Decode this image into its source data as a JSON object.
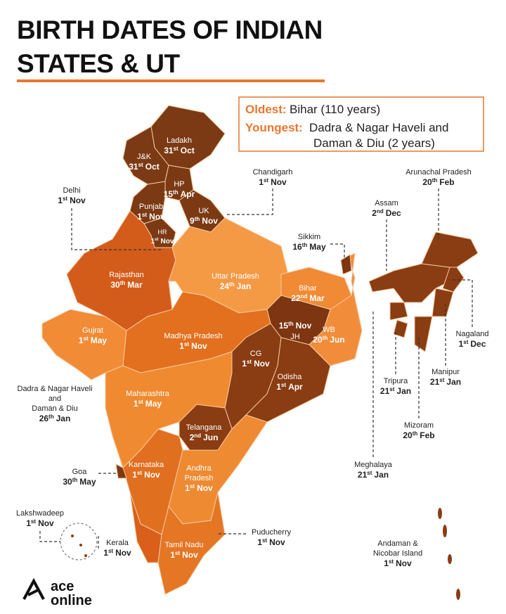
{
  "header": {
    "title_lines": [
      "BIRTH DATES OF INDIAN",
      "STATES & UT"
    ]
  },
  "highlight_box": {
    "oldest_key": "Oldest:",
    "oldest_value": "Bihar (110 years)",
    "youngest_key": "Youngest:",
    "youngest_lines": [
      "Dadra & Nagar Haveli and",
      "Daman & Diu (2 years)"
    ]
  },
  "labels": [
    {
      "name": [
        "Ladakh"
      ],
      "day": "31",
      "suffix": "st",
      "month": "Oct"
    },
    {
      "name": [
        "J&K"
      ],
      "day": "31",
      "suffix": "st",
      "month": "Oct"
    },
    {
      "name": [
        "HP"
      ],
      "day": "15",
      "suffix": "th",
      "month": "Apr"
    },
    {
      "name": [
        "Punjab"
      ],
      "day": "1",
      "suffix": "st",
      "month": "Nov"
    },
    {
      "name": [
        "UK"
      ],
      "day": "9",
      "suffix": "th",
      "month": "Nov"
    },
    {
      "name": [
        "HR"
      ],
      "day": "1",
      "suffix": "st",
      "month": "Nov"
    },
    {
      "name": [
        "Chandigarh"
      ],
      "day": "1",
      "suffix": "st",
      "month": "Nov"
    },
    {
      "name": [
        "Delhi"
      ],
      "day": "1",
      "suffix": "st",
      "month": "Nov"
    },
    {
      "name": [
        "Rajasthan"
      ],
      "day": "30",
      "suffix": "th",
      "month": "Mar"
    },
    {
      "name": [
        "Uttar Pradesh"
      ],
      "day": "24",
      "suffix": "th",
      "month": "Jan"
    },
    {
      "name": [
        "Bihar"
      ],
      "day": "22",
      "suffix": "nd",
      "month": "Mar"
    },
    {
      "name": [
        "Sikkim"
      ],
      "day": "16",
      "suffix": "th",
      "month": "May"
    },
    {
      "name": [
        "Assam"
      ],
      "day": "2",
      "suffix": "nd",
      "month": "Dec"
    },
    {
      "name": [
        "Arunachal Pradesh"
      ],
      "day": "20",
      "suffix": "th",
      "month": "Feb"
    },
    {
      "name": [
        "Gujrat"
      ],
      "day": "1",
      "suffix": "st",
      "month": "May"
    },
    {
      "name": [
        "Madhya Pradesh"
      ],
      "day": "1",
      "suffix": "st",
      "month": "Nov"
    },
    {
      "name": [
        "JH"
      ],
      "day": "15",
      "suffix": "th",
      "month": "Nov"
    },
    {
      "name": [
        "WB"
      ],
      "day": "20",
      "suffix": "th",
      "month": "Jun"
    },
    {
      "name": [
        "CG"
      ],
      "day": "1",
      "suffix": "st",
      "month": "Nov"
    },
    {
      "name": [
        "Odisha"
      ],
      "day": "1",
      "suffix": "st",
      "month": "Apr"
    },
    {
      "name": [
        "Nagaland"
      ],
      "day": "1",
      "suffix": "st",
      "month": "Dec"
    },
    {
      "name": [
        "Manipur"
      ],
      "day": "21",
      "suffix": "st",
      "month": "Jan"
    },
    {
      "name": [
        "Tripura"
      ],
      "day": "21",
      "suffix": "st",
      "month": "Jan"
    },
    {
      "name": [
        "Mizoram"
      ],
      "day": "20",
      "suffix": "th",
      "month": "Feb"
    },
    {
      "name": [
        "Meghalaya"
      ],
      "day": "21",
      "suffix": "st",
      "month": "Jan"
    },
    {
      "name": [
        "Dadra & Nagar Haveli",
        "and",
        "Daman & Diu"
      ],
      "day": "26",
      "suffix": "th",
      "month": "Jan"
    },
    {
      "name": [
        "Maharashtra"
      ],
      "day": "1",
      "suffix": "st",
      "month": "May"
    },
    {
      "name": [
        "Telangana"
      ],
      "day": "2",
      "suffix": "nd",
      "month": "Jun"
    },
    {
      "name": [
        "Karnataka"
      ],
      "day": "1",
      "suffix": "st",
      "month": "Nov"
    },
    {
      "name": [
        "Andhra",
        "Pradesh"
      ],
      "day": "1",
      "suffix": "st",
      "month": "Nov"
    },
    {
      "name": [
        "Goa"
      ],
      "day": "30",
      "suffix": "th",
      "month": "May"
    },
    {
      "name": [
        "Lakshwadeep"
      ],
      "day": "1",
      "suffix": "st",
      "month": "Nov"
    },
    {
      "name": [
        "Kerala"
      ],
      "day": "1",
      "suffix": "st",
      "month": "Nov"
    },
    {
      "name": [
        "Tamil Nadu"
      ],
      "day": "1",
      "suffix": "st",
      "month": "Nov"
    },
    {
      "name": [
        "Puducherry"
      ],
      "day": "1",
      "suffix": "st",
      "month": "Nov"
    },
    {
      "name": [
        "Andaman &",
        "Nicobar Island"
      ],
      "day": "1",
      "suffix": "st",
      "month": "Nov"
    }
  ],
  "logo": {
    "line1": "ace",
    "line2": "online"
  }
}
